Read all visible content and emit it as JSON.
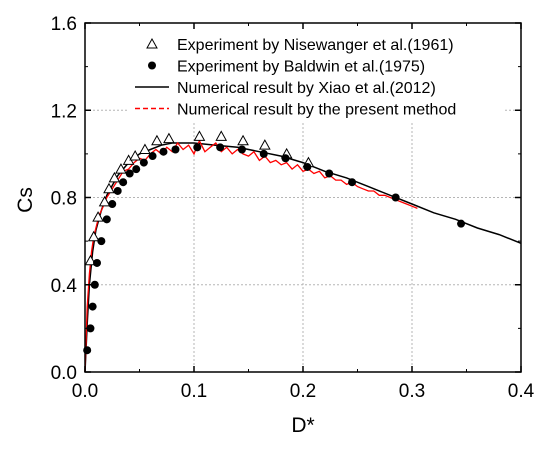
{
  "chart_data": {
    "type": "scatter",
    "xlabel": "D*",
    "ylabel": "Cs",
    "xlim": [
      0.0,
      0.4
    ],
    "ylim": [
      0.0,
      1.6
    ],
    "xticks": [
      "0.0",
      "0.1",
      "0.2",
      "0.3",
      "0.4"
    ],
    "yticks": [
      "0.0",
      "0.4",
      "0.8",
      "1.2",
      "1.6"
    ],
    "grid": "dotted",
    "legend_position": "top",
    "series": [
      {
        "name": "Experiment by Nisewanger et al.(1961)",
        "style": "open-triangle",
        "color": "#000000",
        "x": [
          0.005,
          0.008,
          0.012,
          0.018,
          0.022,
          0.027,
          0.033,
          0.04,
          0.046,
          0.055,
          0.066,
          0.077,
          0.105,
          0.125,
          0.145,
          0.165,
          0.185,
          0.205
        ],
        "y": [
          0.51,
          0.62,
          0.71,
          0.78,
          0.84,
          0.89,
          0.93,
          0.97,
          0.99,
          1.02,
          1.06,
          1.07,
          1.08,
          1.08,
          1.06,
          1.04,
          1.0,
          0.96
        ]
      },
      {
        "name": "Experiment by Baldwin et al.(1975)",
        "style": "filled-circle",
        "color": "#000000",
        "x": [
          0.002,
          0.005,
          0.007,
          0.009,
          0.011,
          0.015,
          0.02,
          0.025,
          0.03,
          0.035,
          0.041,
          0.047,
          0.054,
          0.062,
          0.072,
          0.083,
          0.103,
          0.124,
          0.144,
          0.164,
          0.184,
          0.204,
          0.224,
          0.245,
          0.285,
          0.345
        ],
        "y": [
          0.1,
          0.2,
          0.3,
          0.4,
          0.5,
          0.6,
          0.7,
          0.77,
          0.83,
          0.87,
          0.91,
          0.93,
          0.96,
          0.99,
          1.01,
          1.02,
          1.03,
          1.03,
          1.02,
          1.0,
          0.98,
          0.94,
          0.91,
          0.87,
          0.8,
          0.68
        ]
      },
      {
        "name": "Numerical result by Xiao et al.(2012)",
        "style": "solid-line",
        "color": "#000000",
        "x": [
          0.0,
          0.002,
          0.004,
          0.007,
          0.01,
          0.015,
          0.02,
          0.03,
          0.04,
          0.05,
          0.06,
          0.07,
          0.08,
          0.09,
          0.1,
          0.12,
          0.14,
          0.16,
          0.18,
          0.2,
          0.22,
          0.24,
          0.26,
          0.28,
          0.3,
          0.32,
          0.34,
          0.36,
          0.38,
          0.4
        ],
        "y": [
          0.0,
          0.22,
          0.4,
          0.55,
          0.65,
          0.74,
          0.81,
          0.9,
          0.96,
          1.0,
          1.02,
          1.04,
          1.05,
          1.05,
          1.05,
          1.04,
          1.03,
          1.01,
          0.99,
          0.96,
          0.92,
          0.89,
          0.85,
          0.81,
          0.77,
          0.73,
          0.7,
          0.66,
          0.63,
          0.59
        ]
      },
      {
        "name": "Numerical result by the present method",
        "style": "dashed-line",
        "color": "#ff0000",
        "x": [
          0.0,
          0.002,
          0.004,
          0.006,
          0.008,
          0.01,
          0.013,
          0.016,
          0.02,
          0.025,
          0.03,
          0.035,
          0.04,
          0.045,
          0.05,
          0.055,
          0.06,
          0.065,
          0.07,
          0.075,
          0.08,
          0.085,
          0.09,
          0.095,
          0.1,
          0.105,
          0.11,
          0.115,
          0.12,
          0.125,
          0.13,
          0.135,
          0.14,
          0.145,
          0.15,
          0.155,
          0.16,
          0.165,
          0.17,
          0.175,
          0.18,
          0.185,
          0.19,
          0.195,
          0.2,
          0.205,
          0.21,
          0.215,
          0.22,
          0.225,
          0.23,
          0.235,
          0.24,
          0.245,
          0.25,
          0.255,
          0.26,
          0.265,
          0.27,
          0.275,
          0.28,
          0.285,
          0.29,
          0.295,
          0.3,
          0.305
        ],
        "y": [
          0.0,
          0.3,
          0.45,
          0.55,
          0.62,
          0.66,
          0.72,
          0.75,
          0.8,
          0.84,
          0.88,
          0.92,
          0.93,
          0.96,
          0.98,
          0.97,
          1.0,
          1.02,
          1.0,
          1.03,
          1.01,
          1.05,
          1.02,
          1.04,
          1.0,
          1.06,
          1.01,
          1.03,
          1.05,
          1.01,
          1.03,
          1.0,
          1.02,
          1.0,
          0.99,
          1.01,
          0.97,
          0.99,
          0.96,
          0.97,
          0.95,
          0.96,
          0.93,
          0.95,
          0.92,
          0.93,
          0.91,
          0.92,
          0.89,
          0.9,
          0.88,
          0.88,
          0.86,
          0.87,
          0.85,
          0.84,
          0.83,
          0.83,
          0.81,
          0.81,
          0.8,
          0.79,
          0.78,
          0.77,
          0.76,
          0.75
        ]
      }
    ]
  }
}
